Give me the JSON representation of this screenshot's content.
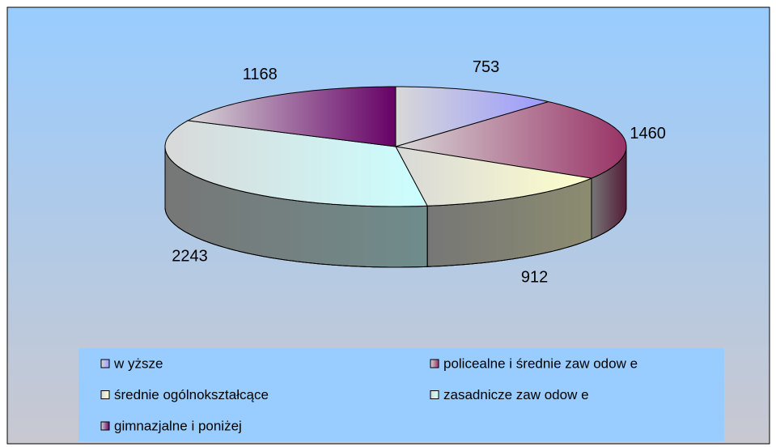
{
  "chart_data": {
    "type": "pie",
    "categories": [
      "w yższe",
      "policealne i średnie zaw odow e",
      "średnie ogólnokształcące",
      "zasadnicze zaw odow e",
      "gimnazjalne i poniżej"
    ],
    "values": [
      753,
      1460,
      912,
      2243,
      1168
    ],
    "colors": [
      "#9999ff",
      "#993366",
      "#ffffcc",
      "#ccffff",
      "#660066"
    ],
    "legend": "bottom"
  }
}
